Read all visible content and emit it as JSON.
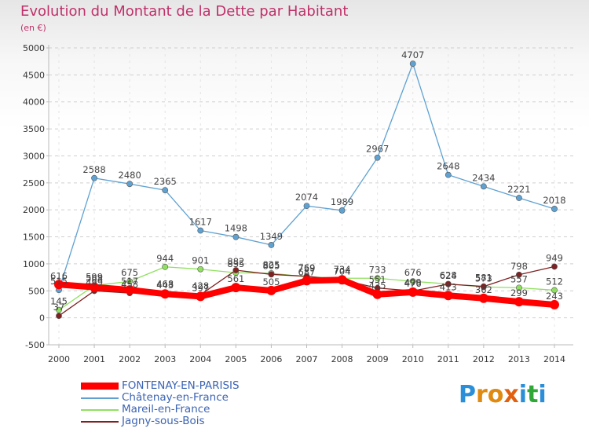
{
  "header": {
    "title": "Evolution du Montant de la Dette par Habitant",
    "subtitle": "(en €)"
  },
  "brand": {
    "letters": [
      "P",
      "r",
      "o",
      "x",
      "i",
      "t",
      "i"
    ],
    "colors": [
      "#2a8fd8",
      "#e08a10",
      "#e08a10",
      "#e06010",
      "#2a8fd8",
      "#30a838",
      "#2a8fd8"
    ]
  },
  "chart_data": {
    "type": "line",
    "title": "Evolution du Montant de la Dette par Habitant",
    "subtitle": "(en €)",
    "xlabel": "",
    "ylabel": "",
    "x": [
      "2000",
      "2001",
      "2002",
      "2003",
      "2004",
      "2005",
      "2006",
      "2007",
      "2008",
      "2009",
      "2010",
      "2011",
      "2012",
      "2013",
      "2014"
    ],
    "ylim": [
      -500,
      5000
    ],
    "yticks": [
      "-500",
      "0",
      "500",
      "1000",
      "1500",
      "2000",
      "2500",
      "3000",
      "3500",
      "4000",
      "4500",
      "5000"
    ],
    "grid": true,
    "legend_position": "bottom-left",
    "series": [
      {
        "name": "FONTENAY-EN-PARISIS",
        "color": "#ff0000",
        "values": [
          616,
          568,
          517,
          443,
          397,
          561,
          505,
          687,
          704,
          435,
          476,
          413,
          362,
          299,
          243
        ],
        "labels": [
          "616",
          "568",
          "517",
          "443",
          "397",
          "561",
          "505",
          "687",
          "704",
          "435",
          "476",
          "413",
          "362",
          "299",
          "243"
        ]
      },
      {
        "name": "Châtenay-en-France",
        "color": "#5fa2d2",
        "values": [
          515,
          2588,
          2480,
          2365,
          1617,
          1498,
          1349,
          2074,
          1989,
          2967,
          4707,
          2648,
          2434,
          2221,
          2018
        ],
        "labels": [
          "515",
          "2588",
          "2480",
          "2365",
          "1617",
          "1498",
          "1349",
          "2074",
          "1989",
          "2967",
          "4707",
          "2648",
          "2434",
          "2221",
          "2018"
        ]
      },
      {
        "name": "Mareil-en-France",
        "color": "#90e060",
        "values": [
          145,
          599,
          675,
          944,
          901,
          835,
          825,
          759,
          734,
          733,
          676,
          628,
          573,
          557,
          512
        ],
        "labels": [
          "145",
          "599",
          "675",
          "944",
          "901",
          "835",
          "825",
          "759",
          "734",
          "733",
          "676",
          "628",
          "573",
          "557",
          "512"
        ]
      },
      {
        "name": "Jagny-sous-Bois",
        "color": "#802020",
        "values": [
          37,
          499,
          458,
          468,
          428,
          882,
          805,
          769,
          704,
          551,
          499,
          624,
          581,
          798,
          949
        ],
        "labels": [
          "37",
          "499",
          "458",
          "468",
          "428",
          "882",
          "805",
          "769",
          "704",
          "551",
          "499",
          "624",
          "581",
          "798",
          "949"
        ]
      }
    ]
  }
}
